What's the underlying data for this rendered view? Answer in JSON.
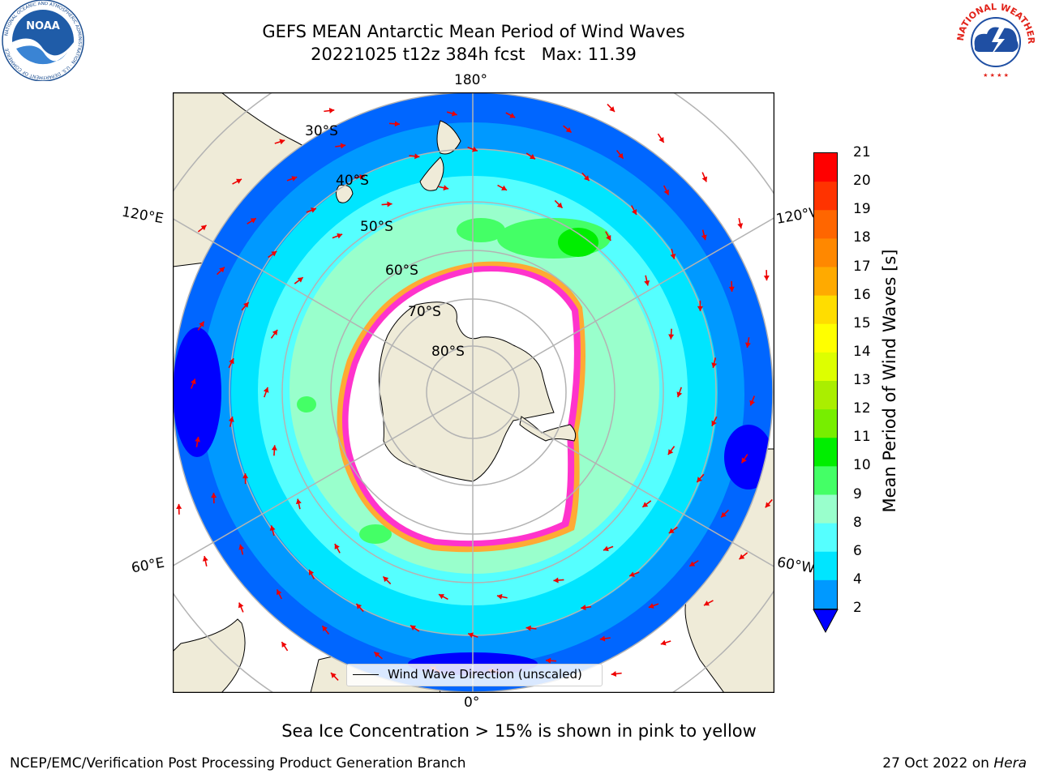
{
  "title": {
    "line1": "GEFS MEAN Antarctic Mean Period of Wind Waves",
    "line2": "20221025 t12z 384h fcst   Max: 11.39"
  },
  "longitude_labels": {
    "top": "180°",
    "bottom": "0°",
    "upper_left": "120°E",
    "lower_left": "60°E",
    "upper_right": "120°W",
    "lower_right": "60°W"
  },
  "latitude_labels": [
    "30°S",
    "40°S",
    "50°S",
    "60°S",
    "70°S",
    "80°S"
  ],
  "legend": {
    "label": "Wind Wave Direction (unscaled)"
  },
  "colorbar": {
    "label": "Mean Period of Wind Waves [s]",
    "ticks": [
      "21",
      "20",
      "19",
      "18",
      "17",
      "16",
      "15",
      "14",
      "13",
      "12",
      "11",
      "10",
      "9",
      "8",
      "6",
      "4",
      "2"
    ],
    "colors": [
      "#ff0000",
      "#ff3300",
      "#ff6600",
      "#ff8800",
      "#ffaa00",
      "#ffdd00",
      "#ffff00",
      "#ddff00",
      "#aaee00",
      "#77ee00",
      "#00ee00",
      "#44ff66",
      "#99ffcc",
      "#55ffff",
      "#00e5ff",
      "#0099ff",
      "#0000ff"
    ],
    "under_color": "#0000ff"
  },
  "sea_ice_note": "Sea Ice Concentration > 15% is shown in pink to yellow",
  "footer": {
    "left": "NCEP/EMC/Verification Post Processing Product Generation Branch",
    "right_date": "27 Oct 2022 on ",
    "right_host": "Hera"
  },
  "logos": {
    "noaa": {
      "center": "NOAA",
      "ring": "NATIONAL OCEANIC AND ATMOSPHERIC ADMINISTRATION · U.S. DEPARTMENT OF COMMERCE"
    },
    "nws": {
      "ring": "NATIONAL WEATHER SERVICE"
    }
  },
  "map_colors": {
    "land": "#efebd8",
    "sea_ice_edge": "#ff33cc",
    "sea_ice_outer": "#ffaa33",
    "arrow": "#ee0000",
    "grid": "#b3b3b3"
  }
}
